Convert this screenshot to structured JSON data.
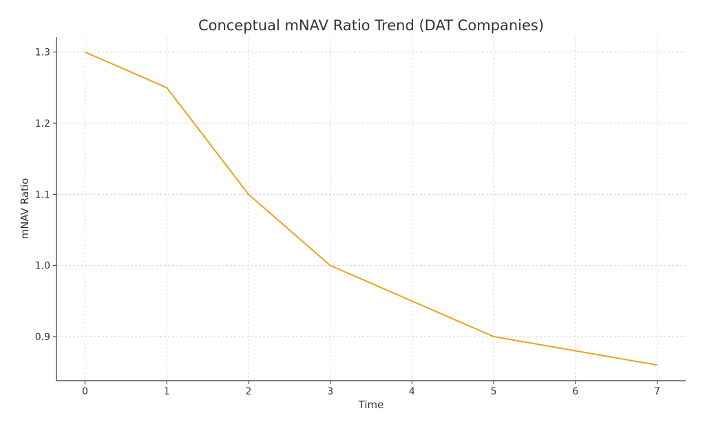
{
  "chart_data": {
    "type": "line",
    "title": "Conceptual mNAV Ratio Trend (DAT Companies)",
    "xlabel": "Time",
    "ylabel": "mNAV Ratio",
    "x": [
      0,
      1,
      2,
      3,
      4,
      5,
      6,
      7
    ],
    "series": [
      {
        "name": "mNAV Ratio",
        "values": [
          1.3,
          1.25,
          1.1,
          1.0,
          0.95,
          0.9,
          0.88,
          0.86
        ],
        "color": "#E8A317"
      }
    ],
    "xticks": [
      "0",
      "1",
      "2",
      "3",
      "4",
      "5",
      "6",
      "7"
    ],
    "yticks": [
      "0.9",
      "1.0",
      "1.1",
      "1.2",
      "1.3"
    ],
    "xlim": [
      -0.35,
      7.35
    ],
    "ylim": [
      0.838,
      1.321
    ],
    "grid": true,
    "legend": "none"
  }
}
